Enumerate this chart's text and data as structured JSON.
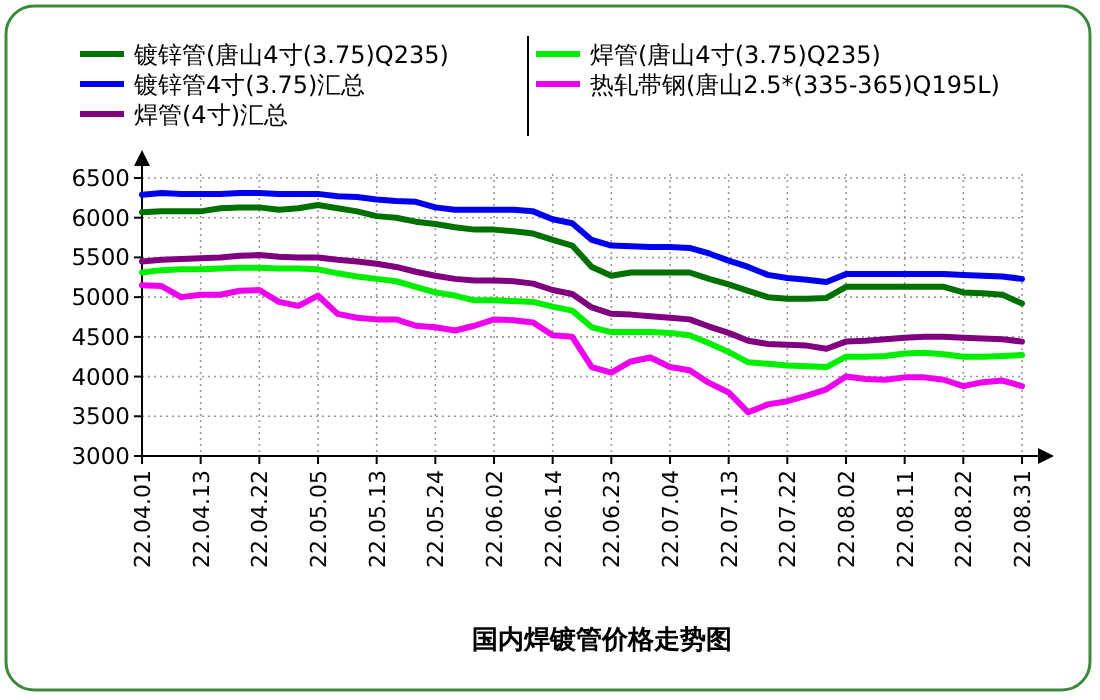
{
  "chart_data": {
    "type": "line",
    "title": "国内焊镀管价格走势图",
    "categories": [
      "22.04.01",
      null,
      null,
      "22.04.13",
      null,
      null,
      "22.04.22",
      null,
      null,
      "22.05.05",
      null,
      null,
      "22.05.13",
      null,
      null,
      "22.05.24",
      null,
      null,
      "22.06.02",
      null,
      null,
      "22.06.14",
      null,
      null,
      "22.06.23",
      null,
      null,
      "22.07.04",
      null,
      null,
      "22.07.13",
      null,
      null,
      "22.07.22",
      null,
      null,
      "22.08.02",
      null,
      null,
      "22.08.11",
      null,
      null,
      "22.08.22",
      null,
      null,
      "22.08.31"
    ],
    "series": [
      {
        "name": "镀锌管(唐山4寸(3.75)Q235)",
        "color": "#007000",
        "values": [
          6070,
          6080,
          6080,
          6080,
          6120,
          6130,
          6130,
          6100,
          6120,
          6160,
          6120,
          6080,
          6020,
          6000,
          5950,
          5920,
          5880,
          5850,
          5850,
          5830,
          5800,
          5720,
          5650,
          5380,
          5270,
          5310,
          5310,
          5310,
          5310,
          5230,
          5160,
          5080,
          5000,
          4980,
          4980,
          4990,
          5130,
          5130,
          5130,
          5130,
          5130,
          5130,
          5060,
          5050,
          5030,
          4920
        ]
      },
      {
        "name": "镀锌管4寸(3.75)汇总",
        "color": "#0000ee",
        "values": [
          6290,
          6310,
          6300,
          6300,
          6300,
          6310,
          6310,
          6300,
          6300,
          6300,
          6270,
          6260,
          6230,
          6210,
          6200,
          6130,
          6100,
          6100,
          6100,
          6100,
          6080,
          5980,
          5930,
          5720,
          5650,
          5640,
          5630,
          5630,
          5620,
          5550,
          5460,
          5380,
          5280,
          5240,
          5220,
          5190,
          5290,
          5290,
          5290,
          5290,
          5290,
          5290,
          5280,
          5270,
          5260,
          5230
        ]
      },
      {
        "name": "焊管(4寸)汇总",
        "color": "#800080",
        "values": [
          5450,
          5470,
          5480,
          5490,
          5500,
          5520,
          5530,
          5510,
          5500,
          5500,
          5470,
          5450,
          5420,
          5380,
          5320,
          5270,
          5230,
          5210,
          5210,
          5200,
          5170,
          5090,
          5040,
          4870,
          4790,
          4780,
          4760,
          4740,
          4720,
          4630,
          4550,
          4450,
          4410,
          4400,
          4390,
          4350,
          4440,
          4450,
          4470,
          4490,
          4500,
          4500,
          4490,
          4480,
          4470,
          4440
        ]
      },
      {
        "name": "焊管(唐山4寸(3.75)Q235)",
        "color": "#00ee00",
        "values": [
          5310,
          5340,
          5350,
          5350,
          5360,
          5370,
          5370,
          5360,
          5360,
          5350,
          5300,
          5260,
          5230,
          5200,
          5130,
          5060,
          5020,
          4960,
          4960,
          4950,
          4940,
          4880,
          4830,
          4620,
          4560,
          4560,
          4560,
          4550,
          4520,
          4420,
          4310,
          4180,
          4160,
          4140,
          4130,
          4120,
          4250,
          4250,
          4260,
          4290,
          4300,
          4280,
          4250,
          4250,
          4260,
          4270
        ]
      },
      {
        "name": "热轧带钢(唐山2.5*(335-365)Q195L)",
        "color": "#ee00ee",
        "values": [
          5150,
          5140,
          5000,
          5030,
          5030,
          5080,
          5090,
          4940,
          4890,
          5020,
          4790,
          4740,
          4720,
          4720,
          4640,
          4620,
          4580,
          4640,
          4720,
          4710,
          4680,
          4520,
          4500,
          4120,
          4050,
          4190,
          4240,
          4120,
          4080,
          3920,
          3800,
          3550,
          3650,
          3690,
          3760,
          3840,
          4000,
          3970,
          3960,
          3990,
          3990,
          3960,
          3880,
          3930,
          3950,
          3880
        ]
      }
    ],
    "ylim": [
      3000,
      6500
    ],
    "yticks": [
      3000,
      3500,
      4000,
      4500,
      5000,
      5500,
      6000,
      6500
    ],
    "grid": true,
    "legend": "top"
  }
}
